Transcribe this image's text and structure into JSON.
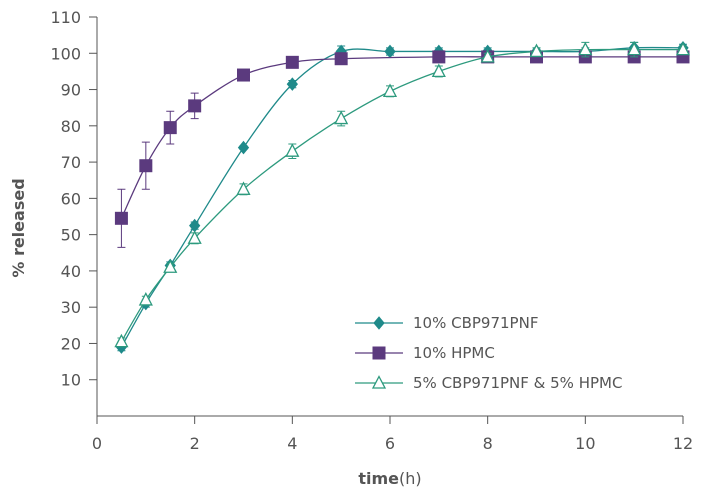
{
  "chart_data": {
    "type": "line",
    "xlabel_bold": "time",
    "xlabel_rest": "(h)",
    "ylabel": "% released",
    "xlim": [
      0,
      12
    ],
    "ylim": [
      0,
      110
    ],
    "x_ticks": [
      0,
      2,
      4,
      6,
      8,
      10,
      12
    ],
    "y_ticks": [
      10,
      20,
      30,
      40,
      50,
      60,
      70,
      80,
      90,
      100,
      110
    ],
    "legend_position": "bottom-right",
    "grid": false,
    "series": [
      {
        "name": "10% CBP971PNF",
        "marker": "diamond",
        "color": "#1f8a8a",
        "x": [
          0.5,
          1,
          1.5,
          2,
          3,
          4,
          5,
          6,
          7,
          8,
          9,
          10,
          11,
          12
        ],
        "y": [
          19,
          31,
          41.5,
          52.5,
          74,
          91.5,
          100.5,
          100.5,
          100.5,
          100.5,
          100.5,
          100.5,
          101.5,
          101.5
        ],
        "err": [
          1,
          1,
          1,
          1,
          0.5,
          1,
          1.5,
          1,
          1,
          1,
          1,
          1,
          1.5,
          1
        ]
      },
      {
        "name": "10% HPMC",
        "marker": "square",
        "color": "#5b3a7e",
        "x": [
          0.5,
          1,
          1.5,
          2,
          3,
          4,
          5,
          7,
          8,
          9,
          10,
          11,
          12
        ],
        "y": [
          54.5,
          69,
          79.5,
          85.5,
          94,
          97.5,
          98.5,
          99,
          99,
          99,
          99,
          99,
          99
        ],
        "err": [
          8,
          6.5,
          4.5,
          3.5,
          1,
          1,
          1,
          1,
          1,
          1,
          1,
          1,
          1
        ]
      },
      {
        "name": "5% CBP971PNF & 5% HPMC",
        "marker": "triangle-open",
        "color": "#2d9a7e",
        "x": [
          0.5,
          1,
          1.5,
          2,
          3,
          4,
          5,
          6,
          7,
          8,
          9,
          10,
          11,
          12
        ],
        "y": [
          20.5,
          32,
          41,
          49,
          62.5,
          73,
          82,
          89.5,
          95,
          99,
          100.5,
          101,
          101,
          101
        ],
        "err": [
          1,
          1,
          1,
          1.5,
          1.5,
          2,
          2,
          1.5,
          1.5,
          1,
          1,
          2,
          2,
          1
        ]
      }
    ]
  }
}
